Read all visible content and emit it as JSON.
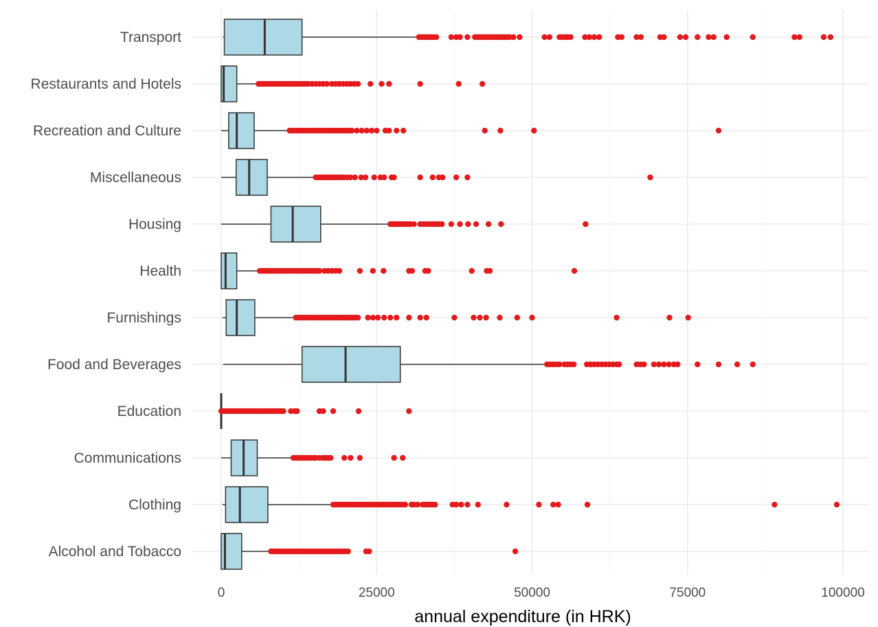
{
  "colors": {
    "box_fill": "#add8e6",
    "outlier": "#e41a1c",
    "line": "#333333"
  },
  "chart_data": {
    "type": "boxplot",
    "orientation": "horizontal",
    "title": "",
    "xlabel": "annual expenditure (in HRK)",
    "ylabel": "",
    "xlim": [
      -2000,
      103500
    ],
    "x_major_ticks": [
      0,
      25000,
      50000,
      75000,
      100000
    ],
    "x_tick_labels": [
      "0",
      "25000",
      "50000",
      "75000",
      "100000"
    ],
    "x_minor_ticks": [
      12500,
      37500,
      62500,
      87500
    ],
    "grid": true,
    "legend": "none",
    "categories": [
      {
        "name": "Transport",
        "whisker_low": 300,
        "q1": 500,
        "median": 7000,
        "q3": 13000,
        "whisker_high": 31500,
        "outliers": [
          31800,
          32200,
          32600,
          33000,
          33400,
          33800,
          34200,
          34600,
          37000,
          37800,
          38400,
          39600,
          40800,
          41200,
          41600,
          42000,
          42400,
          42800,
          43200,
          43600,
          44000,
          44400,
          44800,
          45200,
          45600,
          46000,
          46400,
          47000,
          48000,
          52000,
          52800,
          54400,
          54800,
          55300,
          55700,
          56200,
          58500,
          59200,
          60000,
          60800,
          63800,
          64400,
          66800,
          67500,
          70600,
          71200,
          73800,
          74700,
          76600,
          78400,
          79200,
          81300,
          85500,
          92200,
          93000,
          96900,
          98000
        ]
      },
      {
        "name": "Restaurants and Hotels",
        "whisker_low": 0,
        "q1": 0,
        "median": 400,
        "q3": 2500,
        "whisker_high": 5800,
        "outliers": [
          6000,
          6400,
          6800,
          7200,
          7600,
          8000,
          8400,
          8800,
          9200,
          9600,
          10000,
          10400,
          10800,
          11200,
          11600,
          12000,
          12400,
          12800,
          13200,
          13600,
          14000,
          14600,
          15200,
          15800,
          16400,
          17000,
          17800,
          18400,
          19000,
          19600,
          20200,
          20800,
          21400,
          22000,
          24000,
          25800,
          27000,
          32000,
          38200,
          42000
        ]
      },
      {
        "name": "Recreation and Culture",
        "whisker_low": 0,
        "q1": 1200,
        "median": 2500,
        "q3": 5300,
        "whisker_high": 10800,
        "outliers": [
          11000,
          11400,
          11800,
          12200,
          12600,
          13000,
          13400,
          13800,
          14200,
          14600,
          15000,
          15400,
          15800,
          16200,
          16600,
          17000,
          17400,
          17800,
          18200,
          18600,
          19000,
          19400,
          19800,
          20200,
          20600,
          21000,
          21800,
          22600,
          23400,
          24200,
          25000,
          26400,
          27000,
          28200,
          29300,
          42400,
          44900,
          50300,
          80000
        ]
      },
      {
        "name": "Miscellaneous",
        "whisker_low": 0,
        "q1": 2400,
        "median": 4500,
        "q3": 7400,
        "whisker_high": 15000,
        "outliers": [
          15200,
          15600,
          16000,
          16400,
          16800,
          17200,
          17600,
          18000,
          18400,
          18800,
          19200,
          19700,
          20200,
          20800,
          21500,
          22500,
          23200,
          24600,
          25600,
          26200,
          27400,
          27800,
          32000,
          34000,
          35000,
          35600,
          37800,
          39600,
          69000
        ]
      },
      {
        "name": "Housing",
        "whisker_low": 0,
        "q1": 8000,
        "median": 11500,
        "q3": 16000,
        "whisker_high": 27000,
        "outliers": [
          27200,
          27600,
          28000,
          28400,
          28800,
          29200,
          29600,
          30000,
          30400,
          31000,
          32000,
          32500,
          33000,
          33500,
          34000,
          34500,
          35000,
          35500,
          37000,
          38400,
          39700,
          41000,
          43000,
          45000,
          58600
        ]
      },
      {
        "name": "Health",
        "whisker_low": 0,
        "q1": 0,
        "median": 700,
        "q3": 2500,
        "whisker_high": 6000,
        "outliers": [
          6200,
          6600,
          7000,
          7400,
          7800,
          8200,
          8600,
          9000,
          9400,
          9800,
          10200,
          10600,
          11000,
          11400,
          11800,
          12200,
          12600,
          13000,
          13400,
          13800,
          14200,
          14600,
          15000,
          15400,
          15800,
          16600,
          17200,
          17800,
          18400,
          19000,
          22300,
          24400,
          26100,
          30200,
          30700,
          32800,
          33300,
          40300,
          42700,
          43200,
          56800
        ]
      },
      {
        "name": "Furnishings",
        "whisker_low": 200,
        "q1": 800,
        "median": 2500,
        "q3": 5400,
        "whisker_high": 11800,
        "outliers": [
          12000,
          12400,
          12800,
          13200,
          13600,
          14000,
          14400,
          14800,
          15200,
          15600,
          16000,
          16400,
          16800,
          17200,
          17600,
          18000,
          18400,
          18800,
          19200,
          19600,
          20000,
          20400,
          20800,
          21200,
          21600,
          22000,
          23600,
          24400,
          25200,
          26200,
          27200,
          28200,
          30200,
          32000,
          33000,
          37500,
          40600,
          41600,
          42600,
          44800,
          47600,
          50000,
          63600,
          72100,
          75100
        ]
      },
      {
        "name": "Food and Beverages",
        "whisker_low": 300,
        "q1": 13000,
        "median": 20000,
        "q3": 28800,
        "whisker_high": 52000,
        "outliers": [
          52400,
          52900,
          53400,
          53900,
          54400,
          55200,
          55700,
          56200,
          56700,
          58800,
          59400,
          60000,
          60600,
          61200,
          61800,
          62400,
          63000,
          63600,
          64000,
          66800,
          67400,
          68000,
          69600,
          70400,
          71200,
          72000,
          72800,
          73400,
          76600,
          80000,
          83000,
          85500
        ]
      },
      {
        "name": "Education",
        "whisker_low": 0,
        "q1": 0,
        "median": 0,
        "q3": 0,
        "whisker_high": 0,
        "outliers": [
          0,
          400,
          800,
          1200,
          1600,
          2000,
          2400,
          2800,
          3200,
          3600,
          4000,
          4400,
          4800,
          5200,
          5600,
          6000,
          6400,
          6800,
          7200,
          7600,
          8000,
          8400,
          8800,
          9200,
          9600,
          10000,
          11200,
          11800,
          12200,
          15800,
          16400,
          18000,
          22100,
          30200
        ]
      },
      {
        "name": "Communications",
        "whisker_low": 0,
        "q1": 1600,
        "median": 3600,
        "q3": 5800,
        "whisker_high": 11400,
        "outliers": [
          11600,
          12000,
          12400,
          12800,
          13200,
          13600,
          14000,
          14400,
          14800,
          15200,
          15800,
          16400,
          16800,
          17200,
          17600,
          19800,
          20800,
          22300,
          27800,
          29200
        ]
      },
      {
        "name": "Clothing",
        "whisker_low": 200,
        "q1": 700,
        "median": 3000,
        "q3": 7500,
        "whisker_high": 17800,
        "outliers": [
          18000,
          18400,
          18800,
          19200,
          19600,
          20000,
          20400,
          20800,
          21200,
          21600,
          22000,
          22400,
          22800,
          23200,
          23600,
          24000,
          24400,
          24800,
          25200,
          25600,
          26000,
          26400,
          26800,
          27200,
          27600,
          28000,
          28400,
          28800,
          29200,
          29600,
          30600,
          31000,
          31600,
          32400,
          32800,
          33200,
          33600,
          34000,
          34400,
          37200,
          37800,
          38600,
          39600,
          41300,
          45900,
          51100,
          53400,
          54200,
          58900,
          89000,
          99000
        ]
      },
      {
        "name": "Alcohol and Tobacco",
        "whisker_low": 0,
        "q1": 0,
        "median": 600,
        "q3": 3300,
        "whisker_high": 7800,
        "outliers": [
          8000,
          8400,
          8800,
          9200,
          9600,
          10000,
          10400,
          10800,
          11200,
          11600,
          12000,
          12400,
          12800,
          13200,
          13600,
          14000,
          14400,
          14800,
          15200,
          15600,
          16000,
          16400,
          16800,
          17200,
          17600,
          18000,
          18400,
          18800,
          19200,
          19600,
          20000,
          20400,
          23300,
          23800,
          47300
        ]
      }
    ]
  }
}
